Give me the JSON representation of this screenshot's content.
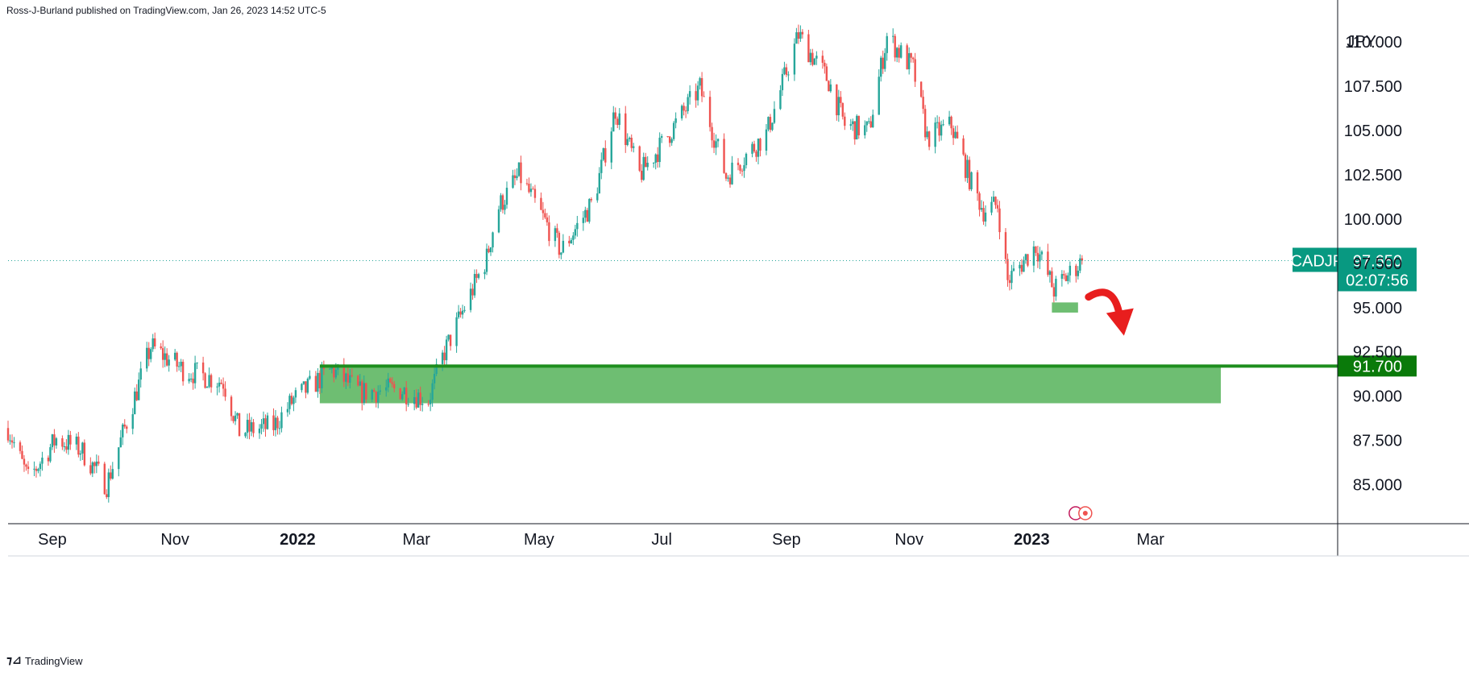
{
  "header": {
    "publish_info": "Ross-J-Burland published on TradingView.com, Jan 26, 2023 14:52 UTC-5"
  },
  "footer": {
    "brand": "TradingView"
  },
  "colors": {
    "up": "#26a69a",
    "down": "#ef5350",
    "zone": "#4caf50",
    "zone_fill": "#66bb6a",
    "level_line": "#1e8e1e",
    "price_badge": "#089981",
    "arrow": "#e81e1e",
    "grid": "#e0e3eb",
    "dotted_line": "#26a69a",
    "event_icon": "#c2185b"
  },
  "chart_data": {
    "type": "candlestick",
    "symbol": "CADJPY",
    "currency_label": "JPY",
    "last_price": "97.650",
    "countdown": "02:07:56",
    "ylim": [
      82.8,
      111.0
    ],
    "y_ticks": [
      "85.000",
      "87.500",
      "90.000",
      "92.500",
      "95.000",
      "97.500",
      "100.000",
      "102.500",
      "105.000",
      "107.500",
      "110.000"
    ],
    "x_ticks": [
      {
        "label": "Sep",
        "date": "2021-09-01",
        "bold": false
      },
      {
        "label": "Nov",
        "date": "2021-11-01",
        "bold": false
      },
      {
        "label": "2022",
        "date": "2022-01-01",
        "bold": true
      },
      {
        "label": "Mar",
        "date": "2022-03-01",
        "bold": false
      },
      {
        "label": "May",
        "date": "2022-05-01",
        "bold": false
      },
      {
        "label": "Jul",
        "date": "2022-07-01",
        "bold": false
      },
      {
        "label": "Sep",
        "date": "2022-09-01",
        "bold": false
      },
      {
        "label": "Nov",
        "date": "2022-11-01",
        "bold": false
      },
      {
        "label": "2023",
        "date": "2023-01-01",
        "bold": true
      },
      {
        "label": "Mar",
        "date": "2023-03-01",
        "bold": false
      }
    ],
    "x_range": [
      "2021-08-10",
      "2023-04-15"
    ],
    "price_path": [
      [
        "2021-08-10",
        88.2
      ],
      [
        "2021-08-20",
        85.3
      ],
      [
        "2021-09-03",
        87.6
      ],
      [
        "2021-09-15",
        87.0
      ],
      [
        "2021-09-28",
        85.0
      ],
      [
        "2021-10-20",
        92.8
      ],
      [
        "2021-11-05",
        91.5
      ],
      [
        "2021-11-25",
        90.8
      ],
      [
        "2021-12-03",
        88.0
      ],
      [
        "2021-12-20",
        88.3
      ],
      [
        "2021-12-30",
        89.8
      ],
      [
        "2022-01-18",
        91.5
      ],
      [
        "2022-02-01",
        90.2
      ],
      [
        "2022-02-20",
        90.4
      ],
      [
        "2022-03-07",
        89.8
      ],
      [
        "2022-03-15",
        92.5
      ],
      [
        "2022-04-05",
        97.8
      ],
      [
        "2022-04-10",
        100.5
      ],
      [
        "2022-04-21",
        102.5
      ],
      [
        "2022-05-12",
        98.2
      ],
      [
        "2022-05-28",
        101.0
      ],
      [
        "2022-06-08",
        106.2
      ],
      [
        "2022-06-20",
        102.5
      ],
      [
        "2022-07-01",
        104.2
      ],
      [
        "2022-07-20",
        107.4
      ],
      [
        "2022-08-02",
        102.4
      ],
      [
        "2022-08-22",
        104.8
      ],
      [
        "2022-09-07",
        110.4
      ],
      [
        "2022-09-22",
        107.8
      ],
      [
        "2022-09-30",
        105.3
      ],
      [
        "2022-10-12",
        105.0
      ],
      [
        "2022-10-21",
        110.3
      ],
      [
        "2022-11-03",
        108.5
      ],
      [
        "2022-11-10",
        104.6
      ],
      [
        "2022-11-22",
        105.3
      ],
      [
        "2022-12-02",
        102.0
      ],
      [
        "2022-12-08",
        100.5
      ],
      [
        "2022-12-15",
        100.8
      ],
      [
        "2022-12-20",
        96.5
      ],
      [
        "2023-01-03",
        98.5
      ],
      [
        "2023-01-12",
        96.0
      ],
      [
        "2023-01-26",
        97.65
      ]
    ],
    "annotations": [
      {
        "type": "support_zone",
        "from": "2022-01-12",
        "to": "2023-04-05",
        "y_low": 89.6,
        "y_high": 91.7
      },
      {
        "type": "horizontal_level",
        "price": 91.7,
        "label": "91.700"
      },
      {
        "type": "small_zone",
        "from": "2023-01-11",
        "to": "2023-01-24",
        "y_low": 94.9,
        "y_high": 95.2
      },
      {
        "type": "arrow",
        "direction": "down"
      }
    ]
  }
}
